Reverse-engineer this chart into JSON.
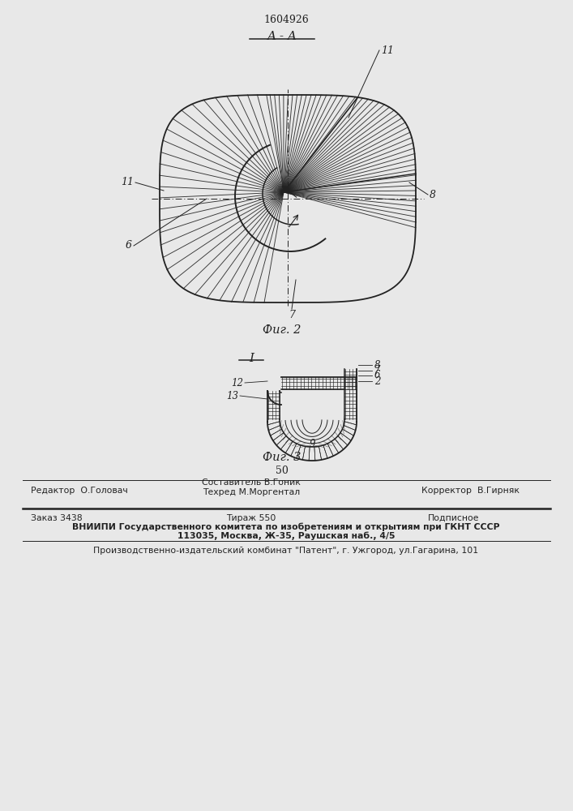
{
  "patent_number": "1604926",
  "fig2_label": "Фиг. 2",
  "fig3_label": "Фиг. 3",
  "section_label": "A - A",
  "section_label2": "I",
  "bg_color": "#f0f0f0",
  "line_color": "#222222",
  "footer_line1_left": "Редактор  О.Головач",
  "footer_line1_c1": "Составитель В.Гоник",
  "footer_line1_c2": "Техред М.Моргентал",
  "footer_line1_right": "Корректор  В.Гирняк",
  "footer_line2_col1": "Заказ 3438",
  "footer_line2_col2": "Тираж 550",
  "footer_line2_col3": "Подписное",
  "footer_line3": "ВНИИПИ Государственного комитета по изобретениям и открытиям при ГКНТ СССР",
  "footer_line4": "113035, Москва, Ж-35, Раушская наб., 4/5",
  "footer_line5": "Производственно-издательский комбинат \"Патент\", г. Ужгород, ул.Гагарина, 101",
  "page_number": "50"
}
